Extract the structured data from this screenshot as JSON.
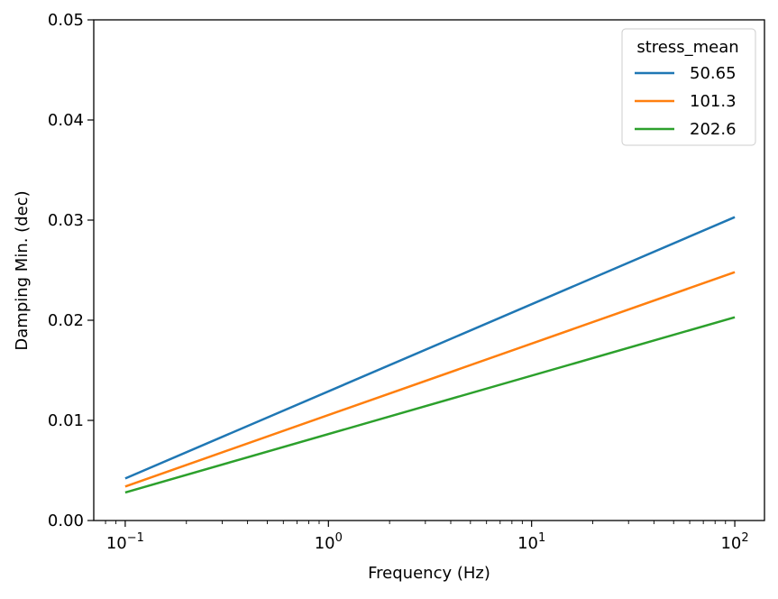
{
  "chart_data": {
    "type": "line",
    "title": "",
    "xlabel": "Frequency (Hz)",
    "ylabel": "Damping Min. (dec)",
    "xscale": "log",
    "xlim": [
      0.07,
      140
    ],
    "ylim": [
      0,
      0.05
    ],
    "yticks": [
      0.0,
      0.01,
      0.02,
      0.03,
      0.04,
      0.05
    ],
    "ytick_labels": [
      "0.00",
      "0.01",
      "0.02",
      "0.03",
      "0.04",
      "0.05"
    ],
    "xticks": [
      {
        "value": 0.1,
        "base": "10",
        "exp": "−1"
      },
      {
        "value": 1,
        "base": "10",
        "exp": "0"
      },
      {
        "value": 10,
        "base": "10",
        "exp": "1"
      },
      {
        "value": 100,
        "base": "10",
        "exp": "2"
      }
    ],
    "grid": false,
    "legend": {
      "title": "stress_mean",
      "placement": "top-right"
    },
    "x": [
      0.1,
      100
    ],
    "series": [
      {
        "name": "50.65",
        "color": "#1f77b4",
        "values": [
          0.0042,
          0.0303
        ]
      },
      {
        "name": "101.3",
        "color": "#ff7f0e",
        "values": [
          0.0034,
          0.0248
        ]
      },
      {
        "name": "202.6",
        "color": "#2ca02c",
        "values": [
          0.0028,
          0.0203
        ]
      }
    ]
  }
}
